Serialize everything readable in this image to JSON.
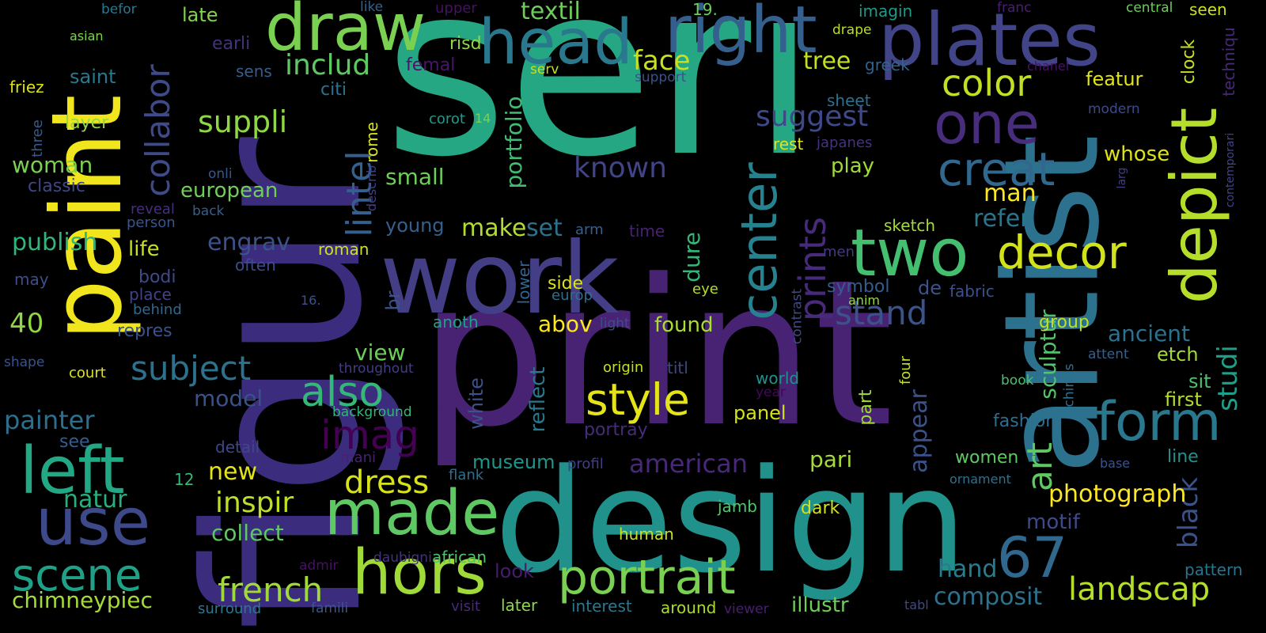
{
  "words": [
    {
      "text": "seri",
      "color": "#26a784",
      "rotated": false
    },
    {
      "text": "print",
      "color": "#482374",
      "rotated": false
    },
    {
      "text": "design",
      "color": "#21918c",
      "rotated": false
    },
    {
      "text": "work",
      "color": "#433e85",
      "rotated": false
    },
    {
      "text": "figur",
      "color": "#3b2c7e",
      "rotated": true
    },
    {
      "text": "artist",
      "color": "#2c728e",
      "rotated": true
    },
    {
      "text": "paint",
      "color": "#f1e51d",
      "rotated": true
    },
    {
      "text": "plates",
      "color": "#414487",
      "rotated": false
    },
    {
      "text": "right",
      "color": "#355f8d",
      "rotated": false
    },
    {
      "text": "draw",
      "color": "#7ad151",
      "rotated": false
    },
    {
      "text": "head",
      "color": "#2a788e",
      "rotated": false
    },
    {
      "text": "two",
      "color": "#44bf70",
      "rotated": false
    },
    {
      "text": "one",
      "color": "#472d7b",
      "rotated": false
    },
    {
      "text": "depict",
      "color": "#b5de2b",
      "rotated": true
    },
    {
      "text": "made",
      "color": "#5ec962",
      "rotated": false
    },
    {
      "text": "hors",
      "color": "#a0da39",
      "rotated": false
    },
    {
      "text": "left",
      "color": "#22a884",
      "rotated": false
    },
    {
      "text": "use",
      "color": "#3e4989",
      "rotated": false
    },
    {
      "text": "scene",
      "color": "#1fa187",
      "rotated": false
    },
    {
      "text": "portrait",
      "color": "#7ad151",
      "rotated": false
    },
    {
      "text": "form",
      "color": "#2a788e",
      "rotated": false
    },
    {
      "text": "creat",
      "color": "#31688e",
      "rotated": false
    },
    {
      "text": "decor",
      "color": "#d2e21b",
      "rotated": false
    },
    {
      "text": "style",
      "color": "#e5e419",
      "rotated": false
    },
    {
      "text": "center",
      "color": "#26828e",
      "rotated": true
    },
    {
      "text": "prints",
      "color": "#472a7a",
      "rotated": true
    },
    {
      "text": "also",
      "color": "#35b779",
      "rotated": false
    },
    {
      "text": "imag",
      "color": "#440154",
      "rotated": false
    },
    {
      "text": "67",
      "color": "#31688e",
      "rotated": false
    },
    {
      "text": "landscap",
      "color": "#b5de2b",
      "rotated": false
    },
    {
      "text": "lintel",
      "color": "#355f8d",
      "rotated": true
    },
    {
      "text": "collabor",
      "color": "#3e4a89",
      "rotated": true
    },
    {
      "text": "color",
      "color": "#c2df23",
      "rotated": false
    },
    {
      "text": "subject",
      "color": "#2c728e",
      "rotated": false
    },
    {
      "text": "french",
      "color": "#9fda3a",
      "rotated": false
    },
    {
      "text": "stand",
      "color": "#3b528b",
      "rotated": false
    },
    {
      "text": "dress",
      "color": "#d8e219",
      "rotated": false
    },
    {
      "text": "inspir",
      "color": "#bddf26",
      "rotated": false
    },
    {
      "text": "suppli",
      "color": "#8fd744",
      "rotated": false
    },
    {
      "text": "includ",
      "color": "#5ec962",
      "rotated": false
    },
    {
      "text": "face",
      "color": "#c8e020",
      "rotated": false
    },
    {
      "text": "textil",
      "color": "#6ccd5a",
      "rotated": false
    },
    {
      "text": "known",
      "color": "#414487",
      "rotated": false
    },
    {
      "text": "suggest",
      "color": "#3e4989",
      "rotated": false
    },
    {
      "text": "black",
      "color": "#3b528b",
      "rotated": true
    },
    {
      "text": "studi",
      "color": "#1f9e89",
      "rotated": true
    },
    {
      "text": "sculptur",
      "color": "#52c569",
      "rotated": true
    },
    {
      "text": "photograph",
      "color": "#fde725",
      "rotated": false
    },
    {
      "text": "composit",
      "color": "#2c728e",
      "rotated": false
    },
    {
      "text": "hand",
      "color": "#287c8e",
      "rotated": false
    },
    {
      "text": "american",
      "color": "#482878",
      "rotated": false
    },
    {
      "text": "painter",
      "color": "#2d708e",
      "rotated": false
    },
    {
      "text": "chimneypiec",
      "color": "#a5db36",
      "rotated": false
    },
    {
      "text": "natur",
      "color": "#29af7f",
      "rotated": false
    },
    {
      "text": "publish",
      "color": "#31b57b",
      "rotated": false
    },
    {
      "text": "woman",
      "color": "#7ad151",
      "rotated": false
    },
    {
      "text": "40",
      "color": "#90d743",
      "rotated": false
    },
    {
      "text": "european",
      "color": "#70cf57",
      "rotated": false
    },
    {
      "text": "classic",
      "color": "#3f4788",
      "rotated": false
    },
    {
      "text": "saint",
      "color": "#2a788e",
      "rotated": false
    },
    {
      "text": "layer",
      "color": "#94d840",
      "rotated": false
    },
    {
      "text": "friez",
      "color": "#dde318",
      "rotated": false
    },
    {
      "text": "asian",
      "color": "#7fd34e",
      "rotated": false
    },
    {
      "text": "befor",
      "color": "#29798e",
      "rotated": false
    },
    {
      "text": "three",
      "color": "#375a8c",
      "rotated": true
    },
    {
      "text": "late",
      "color": "#81d34d",
      "rotated": false
    },
    {
      "text": "earli",
      "color": "#46317e",
      "rotated": false
    },
    {
      "text": "sens",
      "color": "#355e8d",
      "rotated": false
    },
    {
      "text": "citi",
      "color": "#2c718e",
      "rotated": false
    },
    {
      "text": "risd",
      "color": "#8bd646",
      "rotated": false
    },
    {
      "text": "like",
      "color": "#33638d",
      "rotated": false
    },
    {
      "text": "upper",
      "color": "#471164",
      "rotated": false
    },
    {
      "text": "femal",
      "color": "#481668",
      "rotated": false
    },
    {
      "text": "serv",
      "color": "#c5e021",
      "rotated": false
    },
    {
      "text": "portfolio",
      "color": "#40bd72",
      "rotated": true
    },
    {
      "text": "rome",
      "color": "#dde318",
      "rotated": true
    },
    {
      "text": "describ",
      "color": "#424186",
      "rotated": true
    },
    {
      "text": "corot",
      "color": "#1e9b8a",
      "rotated": false
    },
    {
      "text": "14",
      "color": "#7ad151",
      "rotated": false
    },
    {
      "text": "small",
      "color": "#6ece58",
      "rotated": false
    },
    {
      "text": "young",
      "color": "#34608d",
      "rotated": false
    },
    {
      "text": "make",
      "color": "#b0dd2f",
      "rotated": false
    },
    {
      "text": "set",
      "color": "#2c728e",
      "rotated": false
    },
    {
      "text": "engrav",
      "color": "#3b528b",
      "rotated": false
    },
    {
      "text": "life",
      "color": "#c5e021",
      "rotated": false
    },
    {
      "text": "often",
      "color": "#3e4c8a",
      "rotated": false
    },
    {
      "text": "roman",
      "color": "#d0e11c",
      "rotated": false
    },
    {
      "text": "bodi",
      "color": "#3e4a89",
      "rotated": false
    },
    {
      "text": "place",
      "color": "#414287",
      "rotated": false
    },
    {
      "text": "behind",
      "color": "#31688e",
      "rotated": false
    },
    {
      "text": "repres",
      "color": "#3b528b",
      "rotated": false
    },
    {
      "text": "may",
      "color": "#3d4e8a",
      "rotated": false
    },
    {
      "text": "person",
      "color": "#3a548c",
      "rotated": false
    },
    {
      "text": "reveal",
      "color": "#462f7e",
      "rotated": false
    },
    {
      "text": "back",
      "color": "#35608d",
      "rotated": false
    },
    {
      "text": "onli",
      "color": "#38588c",
      "rotated": false
    },
    {
      "text": "view",
      "color": "#6ccd5a",
      "rotated": false
    },
    {
      "text": "model",
      "color": "#3b518b",
      "rotated": false
    },
    {
      "text": "shape",
      "color": "#3b528b",
      "rotated": false
    },
    {
      "text": "court",
      "color": "#dfe318",
      "rotated": false
    },
    {
      "text": "see",
      "color": "#355e8d",
      "rotated": false
    },
    {
      "text": "detail",
      "color": "#3f4788",
      "rotated": false
    },
    {
      "text": "12",
      "color": "#35b779",
      "rotated": false
    },
    {
      "text": "new",
      "color": "#e2e418",
      "rotated": false
    },
    {
      "text": "collect",
      "color": "#5ec962",
      "rotated": false
    },
    {
      "text": "mani",
      "color": "#482173",
      "rotated": false
    },
    {
      "text": "daubigni",
      "color": "#46327e",
      "rotated": false
    },
    {
      "text": "african",
      "color": "#50c46a",
      "rotated": false
    },
    {
      "text": "admir",
      "color": "#471063",
      "rotated": false
    },
    {
      "text": "famili",
      "color": "#38598c",
      "rotated": false
    },
    {
      "text": "surround",
      "color": "#2a788e",
      "rotated": false
    },
    {
      "text": "visit",
      "color": "#482878",
      "rotated": false
    },
    {
      "text": "later",
      "color": "#8fd744",
      "rotated": false
    },
    {
      "text": "look",
      "color": "#471b6e",
      "rotated": false
    },
    {
      "text": "interest",
      "color": "#2a788e",
      "rotated": false
    },
    {
      "text": "around",
      "color": "#a8db34",
      "rotated": false
    },
    {
      "text": "viewer",
      "color": "#481f70",
      "rotated": false
    },
    {
      "text": "illustr",
      "color": "#6ece58",
      "rotated": false
    },
    {
      "text": "human",
      "color": "#c8e020",
      "rotated": false
    },
    {
      "text": "jamb",
      "color": "#52c569",
      "rotated": false
    },
    {
      "text": "dark",
      "color": "#d2e21b",
      "rotated": false
    },
    {
      "text": "museum",
      "color": "#1f968b",
      "rotated": false
    },
    {
      "text": "flank",
      "color": "#2e6f8e",
      "rotated": false
    },
    {
      "text": "profil",
      "color": "#433e85",
      "rotated": false
    },
    {
      "text": "portray",
      "color": "#472c7a",
      "rotated": false
    },
    {
      "text": "panel",
      "color": "#d2e21b",
      "rotated": false
    },
    {
      "text": "found",
      "color": "#aadc32",
      "rotated": false
    },
    {
      "text": "abov",
      "color": "#fde725",
      "rotated": false
    },
    {
      "text": "side",
      "color": "#dde318",
      "rotated": false
    },
    {
      "text": "light",
      "color": "#3e4c8a",
      "rotated": false
    },
    {
      "text": "origin",
      "color": "#c5e021",
      "rotated": false
    },
    {
      "text": "titl",
      "color": "#3f4889",
      "rotated": false
    },
    {
      "text": "background",
      "color": "#33b67a",
      "rotated": false
    },
    {
      "text": "throughout",
      "color": "#433d84",
      "rotated": false
    },
    {
      "text": "anoth",
      "color": "#1fa187",
      "rotated": false
    },
    {
      "text": "white",
      "color": "#3b528b",
      "rotated": true
    },
    {
      "text": "reflect",
      "color": "#2a788e",
      "rotated": true
    },
    {
      "text": "dure",
      "color": "#35b779",
      "rotated": true
    },
    {
      "text": "time",
      "color": "#482173",
      "rotated": false
    },
    {
      "text": "arm",
      "color": "#34618d",
      "rotated": false
    },
    {
      "text": "br",
      "color": "#3b528b",
      "rotated": true
    },
    {
      "text": "lower",
      "color": "#32648e",
      "rotated": true
    },
    {
      "text": "europ",
      "color": "#2e6e8e",
      "rotated": false
    },
    {
      "text": "eye",
      "color": "#b2dd2d",
      "rotated": false
    },
    {
      "text": "symbol",
      "color": "#365c8d",
      "rotated": false
    },
    {
      "text": "anim",
      "color": "#95d840",
      "rotated": false
    },
    {
      "text": "de",
      "color": "#3b528b",
      "rotated": false
    },
    {
      "text": "men",
      "color": "#443983",
      "rotated": false
    },
    {
      "text": "fabric",
      "color": "#3b518b",
      "rotated": false
    },
    {
      "text": "play",
      "color": "#a0da39",
      "rotated": false
    },
    {
      "text": "sketch",
      "color": "#a5db36",
      "rotated": false
    },
    {
      "text": "man",
      "color": "#fde725",
      "rotated": false
    },
    {
      "text": "refer",
      "color": "#2a768e",
      "rotated": false
    },
    {
      "text": "whose",
      "color": "#dde318",
      "rotated": false
    },
    {
      "text": "rest",
      "color": "#e2e418",
      "rotated": false
    },
    {
      "text": "japanes",
      "color": "#46327e",
      "rotated": false
    },
    {
      "text": "sheet",
      "color": "#2c718e",
      "rotated": false
    },
    {
      "text": "tree",
      "color": "#c2df23",
      "rotated": false
    },
    {
      "text": "greek",
      "color": "#33638d",
      "rotated": false
    },
    {
      "text": "support",
      "color": "#3b528b",
      "rotated": false
    },
    {
      "text": "19.",
      "color": "#6ccd5a",
      "rotated": false
    },
    {
      "text": "drape",
      "color": "#b8de29",
      "rotated": false
    },
    {
      "text": "imagin",
      "color": "#1f9a8a",
      "rotated": false
    },
    {
      "text": "franc",
      "color": "#482071",
      "rotated": false
    },
    {
      "text": "chanel",
      "color": "#471365",
      "rotated": false
    },
    {
      "text": "featur",
      "color": "#dfe318",
      "rotated": false
    },
    {
      "text": "central",
      "color": "#6ccd5a",
      "rotated": false
    },
    {
      "text": "seen",
      "color": "#c8e020",
      "rotated": false
    },
    {
      "text": "clock",
      "color": "#c8e020",
      "rotated": true
    },
    {
      "text": "techniqu",
      "color": "#482878",
      "rotated": true
    },
    {
      "text": "modern",
      "color": "#3e4989",
      "rotated": false
    },
    {
      "text": "contemporari",
      "color": "#414487",
      "rotated": true
    },
    {
      "text": "larg",
      "color": "#424086",
      "rotated": true
    },
    {
      "text": "ancient",
      "color": "#2c728e",
      "rotated": false
    },
    {
      "text": "group",
      "color": "#bddf26",
      "rotated": false
    },
    {
      "text": "etch",
      "color": "#a0da39",
      "rotated": false
    },
    {
      "text": "sit",
      "color": "#4ac16d",
      "rotated": false
    },
    {
      "text": "first",
      "color": "#b0dd2f",
      "rotated": false
    },
    {
      "text": "attent",
      "color": "#34618d",
      "rotated": false
    },
    {
      "text": "book",
      "color": "#4ac16d",
      "rotated": false
    },
    {
      "text": "chines",
      "color": "#2e6f8e",
      "rotated": true
    },
    {
      "text": "fashion",
      "color": "#2e6e8e",
      "rotated": false
    },
    {
      "text": "line",
      "color": "#21918c",
      "rotated": false
    },
    {
      "text": "women",
      "color": "#5ec962",
      "rotated": false
    },
    {
      "text": "ornament",
      "color": "#2d718e",
      "rotated": false
    },
    {
      "text": "base",
      "color": "#3b528b",
      "rotated": false
    },
    {
      "text": "motif",
      "color": "#3e4a89",
      "rotated": false
    },
    {
      "text": "pattern",
      "color": "#2b748e",
      "rotated": false
    },
    {
      "text": "tabl",
      "color": "#3f4889",
      "rotated": false
    },
    {
      "text": "pari",
      "color": "#a5db36",
      "rotated": false
    },
    {
      "text": "appear",
      "color": "#3b528b",
      "rotated": true
    },
    {
      "text": "art",
      "color": "#5ec962",
      "rotated": true
    },
    {
      "text": "world",
      "color": "#21918c",
      "rotated": false
    },
    {
      "text": "year",
      "color": "#46075a",
      "rotated": false
    },
    {
      "text": "contrast",
      "color": "#3f4889",
      "rotated": true
    },
    {
      "text": "part",
      "color": "#a0da39",
      "rotated": true
    },
    {
      "text": "four",
      "color": "#c2df23",
      "rotated": true
    },
    {
      "text": "16.",
      "color": "#3b528b",
      "rotated": false
    }
  ]
}
